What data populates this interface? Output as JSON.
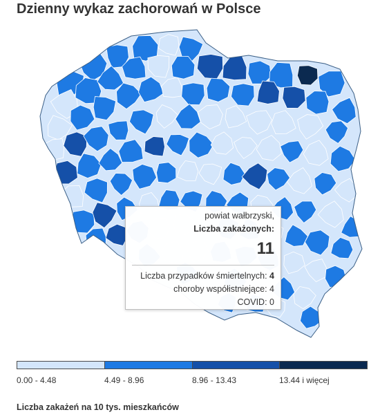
{
  "title": "Dzienny wykaz zachorowań w Polsce",
  "map": {
    "colors": {
      "c0": "#d4e6fb",
      "c1": "#1e7ae3",
      "c2": "#1550a8",
      "c3": "#0b2a50",
      "border": "#ffffff",
      "district_line": "#2a4f7a",
      "outline": "#3b5f86"
    }
  },
  "tooltip": {
    "region": "powiat wałbrzyski,",
    "cases_label": "Liczba zakażonych:",
    "cases_value": "11",
    "deaths_label": "Liczba przypadków śmiertelnych:",
    "deaths_value": "4",
    "comorbid_label": "choroby współistniejące:",
    "comorbid_value": "4",
    "covid_label": "COVID:",
    "covid_value": "0"
  },
  "legend": {
    "items": [
      {
        "label": "0.00 - 4.48",
        "color": "#d4e6fb"
      },
      {
        "label": "4.49 - 8.96",
        "color": "#1e7ae3"
      },
      {
        "label": "8.96 - 13.43",
        "color": "#1550a8"
      },
      {
        "label": "13.44 i więcej",
        "color": "#0b2a50"
      }
    ]
  },
  "footnote": "Liczba zakażeń na 10 tys. mieszkańców"
}
